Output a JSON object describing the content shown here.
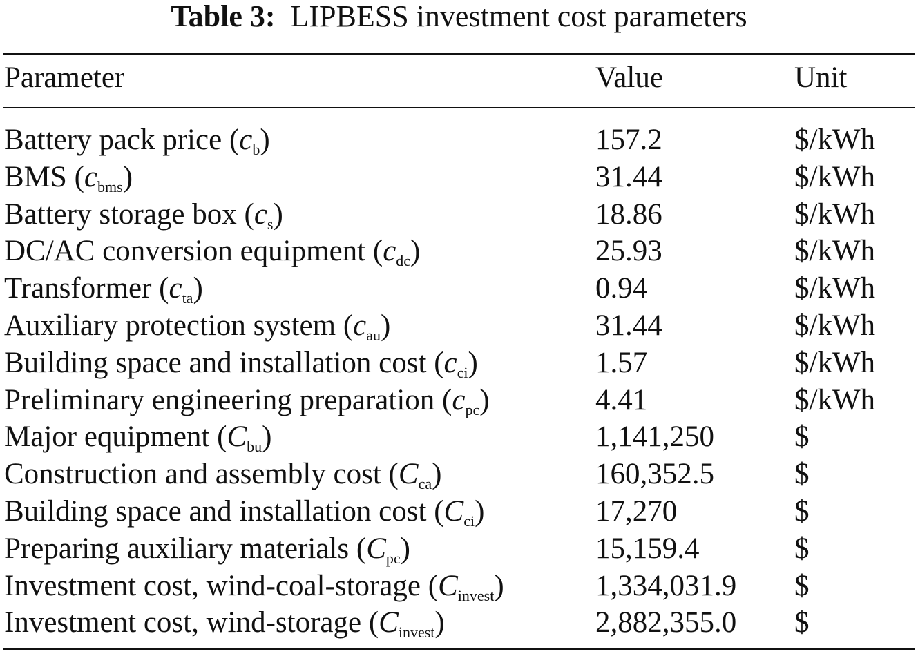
{
  "caption": {
    "label": "Table 3:",
    "text": "LIPBESS investment cost parameters"
  },
  "table": {
    "headers": {
      "parameter": "Parameter",
      "value": "Value",
      "unit": "Unit"
    },
    "rows": [
      {
        "name": "Battery pack price",
        "symbol": "c",
        "subscript": "b",
        "value": "157.2",
        "unit": "$/kWh"
      },
      {
        "name": "BMS",
        "symbol": "c",
        "subscript": "bms",
        "value": "31.44",
        "unit": "$/kWh"
      },
      {
        "name": "Battery storage box",
        "symbol": "c",
        "subscript": "s",
        "value": "18.86",
        "unit": "$/kWh"
      },
      {
        "name": "DC/AC conversion equipment",
        "symbol": "c",
        "subscript": "dc",
        "value": "25.93",
        "unit": "$/kWh"
      },
      {
        "name": "Transformer",
        "symbol": "c",
        "subscript": "ta",
        "value": "0.94",
        "unit": "$/kWh"
      },
      {
        "name": "Auxiliary protection system",
        "symbol": "c",
        "subscript": "au",
        "value": "31.44",
        "unit": "$/kWh"
      },
      {
        "name": "Building space and installation cost",
        "symbol": "c",
        "subscript": "ci",
        "value": "1.57",
        "unit": "$/kWh"
      },
      {
        "name": "Preliminary engineering preparation",
        "symbol": "c",
        "subscript": "pc",
        "value": "4.41",
        "unit": "$/kWh"
      },
      {
        "name": "Major equipment",
        "symbol": "C",
        "subscript": "bu",
        "value": "1,141,250",
        "unit": "$"
      },
      {
        "name": "Construction and assembly cost",
        "symbol": "C",
        "subscript": "ca",
        "value": "160,352.5",
        "unit": "$"
      },
      {
        "name": "Building space and installation cost",
        "symbol": "C",
        "subscript": "ci",
        "value": "17,270",
        "unit": "$"
      },
      {
        "name": "Preparing auxiliary materials",
        "symbol": "C",
        "subscript": "pc",
        "value": "15,159.4",
        "unit": "$"
      },
      {
        "name": "Investment cost, wind-coal-storage",
        "symbol": "C",
        "subscript": "invest",
        "value": "1,334,031.9",
        "unit": "$"
      },
      {
        "name": "Investment cost, wind-storage",
        "symbol": "C",
        "subscript": "invest",
        "value": "2,882,355.0",
        "unit": "$"
      }
    ]
  }
}
